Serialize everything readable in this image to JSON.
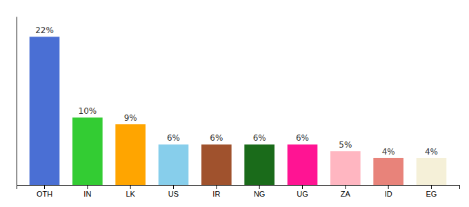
{
  "chart_data": {
    "type": "bar",
    "categories": [
      "OTH",
      "IN",
      "LK",
      "US",
      "IR",
      "NG",
      "UG",
      "ZA",
      "ID",
      "EG"
    ],
    "values": [
      22,
      10,
      9,
      6,
      6,
      6,
      6,
      5,
      4,
      4
    ],
    "value_labels": [
      "22%",
      "10%",
      "9%",
      "6%",
      "6%",
      "6%",
      "6%",
      "5%",
      "4%",
      "4%"
    ],
    "colors": [
      "#4A6FD4",
      "#33CC33",
      "#FFA500",
      "#87CEEB",
      "#A0522D",
      "#1A6B1A",
      "#FF1493",
      "#FFB6C1",
      "#E8837A",
      "#F5F0D8"
    ],
    "ylim": [
      0,
      25
    ],
    "data_labels": true,
    "tick_labels": "x"
  }
}
